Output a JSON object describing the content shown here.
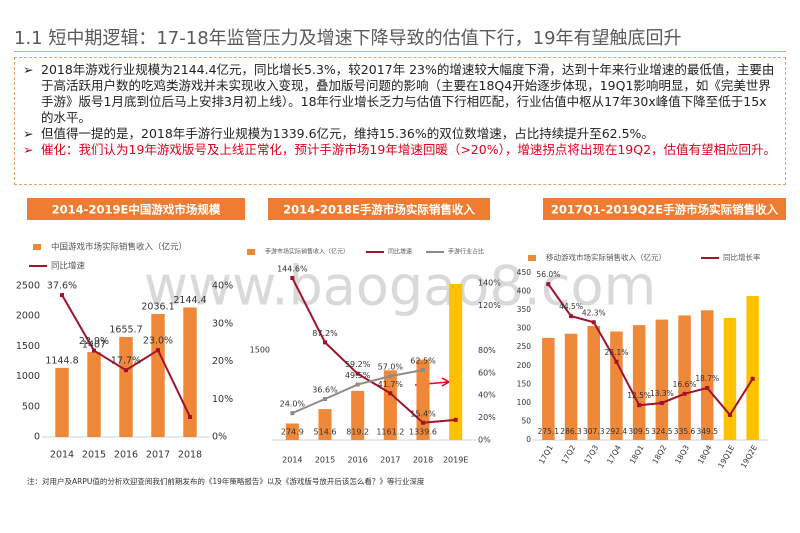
{
  "title": "1.1 短中期逻辑：17-18年监管压力及增速下降导致的估值下行，19年有望触底回升",
  "bullets": [
    "2018年游戏行业规模为2144.4亿元，同比增长5.3%，较2017年 23%的增速较大幅度下滑，达到十年来行业增速的最低值，主要由于高活跃用户数的吃鸡类游戏并未实现收入变现，叠加版号问题的影响（主要在18Q4开始逐步体现，19Q1影响明显，如《完美世界手游》版号1月底到位后马上安排3月初上线）。18年行业增长乏力与估值下行相匹配，行业估值中枢从17年30x峰值下降至低于15x的水平。",
    "但值得一提的是，2018年手游行业规模为1339.6亿元，维持15.36%的双位数增速，占比持续提升至62.5%。",
    "催化：我们认为19年游戏版号及上线正常化，预计手游市场19年增速回暖（>20%），增速拐点将出现在19Q2，估值有望相应回升。"
  ],
  "watermark": "www.baogao8.com",
  "note": "注：对用户及ARPU值的分析欢迎查阅我们前期发布的《19年策略报告》以及《游戏版号放开后该怎么看？》等行业深度",
  "chart_data": [
    {
      "type": "combo",
      "title": "2014-2019E中国游戏市场规模",
      "categories": [
        "2014",
        "2015",
        "2016",
        "2017",
        "2018"
      ],
      "ylim": [
        0,
        2500
      ],
      "yticks": [
        0,
        500,
        1000,
        1500,
        2000,
        2500
      ],
      "y2lim": [
        0,
        40
      ],
      "y2ticks": [
        {
          "value": 0,
          "label": "0%"
        },
        {
          "value": 10,
          "label": "10%"
        },
        {
          "value": 20,
          "label": "20%"
        },
        {
          "value": 30,
          "label": "30%"
        },
        {
          "value": 40,
          "label": "40%"
        }
      ],
      "series": [
        {
          "name": "中国游戏市场实际销售收入（亿元）",
          "type": "bar",
          "color": "#f0883a",
          "colors": [
            "#f0883a",
            "#f0883a",
            "#f0883a",
            "#f0883a",
            "#f0883a"
          ],
          "values": [
            1144.8,
            1407,
            1655.7,
            2036.1,
            2144.4
          ],
          "value_labels": [
            "1144.8",
            "1407",
            "1655.7",
            "2036.1",
            "2144.4"
          ]
        },
        {
          "name": "同比增速",
          "type": "line",
          "axis": "y2",
          "color": "#a3122a",
          "values": [
            37.6,
            22.9,
            17.7,
            23.0,
            5.3
          ],
          "value_labels": [
            "37.6%",
            "22.9%",
            "17.7%",
            "23.0%",
            null
          ]
        }
      ]
    },
    {
      "type": "combo",
      "title": "2014-2018E手游市场实际销售收入",
      "categories": [
        "2014",
        "2015",
        "2016",
        "2017",
        "2018",
        "2019E"
      ],
      "ylim": [
        0,
        2800
      ],
      "yticks": [
        1500
      ],
      "y2lim": [
        0,
        150
      ],
      "y2ticks": [
        {
          "value": 0,
          "label": "0%"
        },
        {
          "value": 20,
          "label": "20%"
        },
        {
          "value": 40,
          "label": "40%"
        },
        {
          "value": 60,
          "label": "60%"
        },
        {
          "value": 80,
          "label": "80%"
        },
        {
          "value": 120,
          "label": "120%"
        },
        {
          "value": 140,
          "label": "140%"
        }
      ],
      "series": [
        {
          "name": "手游市场实际销售收入（亿元）",
          "type": "bar",
          "color": "#f0883a",
          "colors": [
            "#f0883a",
            "#f0883a",
            "#f0883a",
            "#f0883a",
            "#f0883a",
            "#ffc000"
          ],
          "values": [
            274.9,
            514.6,
            819.2,
            1161.2,
            1339.6,
            2600
          ],
          "value_labels": [
            "274.9",
            "514.6",
            "819.2",
            "1161.2",
            "1339.6",
            null
          ]
        },
        {
          "name": "同比增速",
          "type": "line",
          "axis": "y2",
          "color": "#a3122a",
          "values": [
            144.6,
            87.2,
            59.2,
            41.7,
            15.4,
            18
          ],
          "value_labels": [
            "144.6%",
            "87.2%",
            "59.2%",
            "41.7%",
            "15.4%",
            null
          ]
        },
        {
          "name": "手游行业占比",
          "type": "line",
          "axis": "y2",
          "color": "#8c8c8c",
          "values": [
            24.0,
            36.6,
            49.5,
            57.0,
            62.5,
            null
          ],
          "value_labels": [
            "24.0%",
            "36.6%",
            "49.5%",
            "57.0%",
            "62.5%",
            null
          ]
        }
      ]
    },
    {
      "type": "combo",
      "title": "2017Q1-2019Q2E手游市场实际销售收入",
      "categories": [
        "17Q1",
        "17Q2",
        "17Q3",
        "17Q4",
        "18Q1",
        "18Q2",
        "18Q3",
        "18Q4",
        "19Q1E",
        "19Q2E"
      ],
      "ylim": [
        0,
        450
      ],
      "yticks": [
        0,
        50,
        100,
        150,
        200,
        250,
        300,
        350,
        400,
        450
      ],
      "y2lim": [
        0,
        60
      ],
      "series": [
        {
          "name": "移动游戏市场实际销售收入（亿元）",
          "type": "bar",
          "color": "#f0883a",
          "colors": [
            "#f0883a",
            "#f0883a",
            "#f0883a",
            "#f0883a",
            "#f0883a",
            "#f0883a",
            "#f0883a",
            "#f0883a",
            "#ffc000",
            "#ffc000"
          ],
          "values": [
            275.1,
            286.3,
            307.3,
            292.4,
            309.5,
            324.5,
            335.6,
            349.5,
            329,
            388
          ],
          "value_labels": [
            "275.1",
            "286.3",
            "307.3",
            "292.4",
            "309.5",
            "324.5",
            "335.6",
            "349.5",
            null,
            null
          ]
        },
        {
          "name": "同比增长率",
          "type": "line",
          "axis": "y2",
          "color": "#a3122a",
          "values": [
            56.0,
            44.5,
            42.3,
            28.1,
            12.5,
            13.3,
            16.6,
            18.7,
            9,
            22
          ],
          "value_labels": [
            "56.0%",
            "44.5%",
            "42.3%",
            "28.1%",
            "12.5%",
            "13.3%",
            "16.6%",
            "18.7%",
            null,
            null
          ]
        }
      ]
    }
  ]
}
